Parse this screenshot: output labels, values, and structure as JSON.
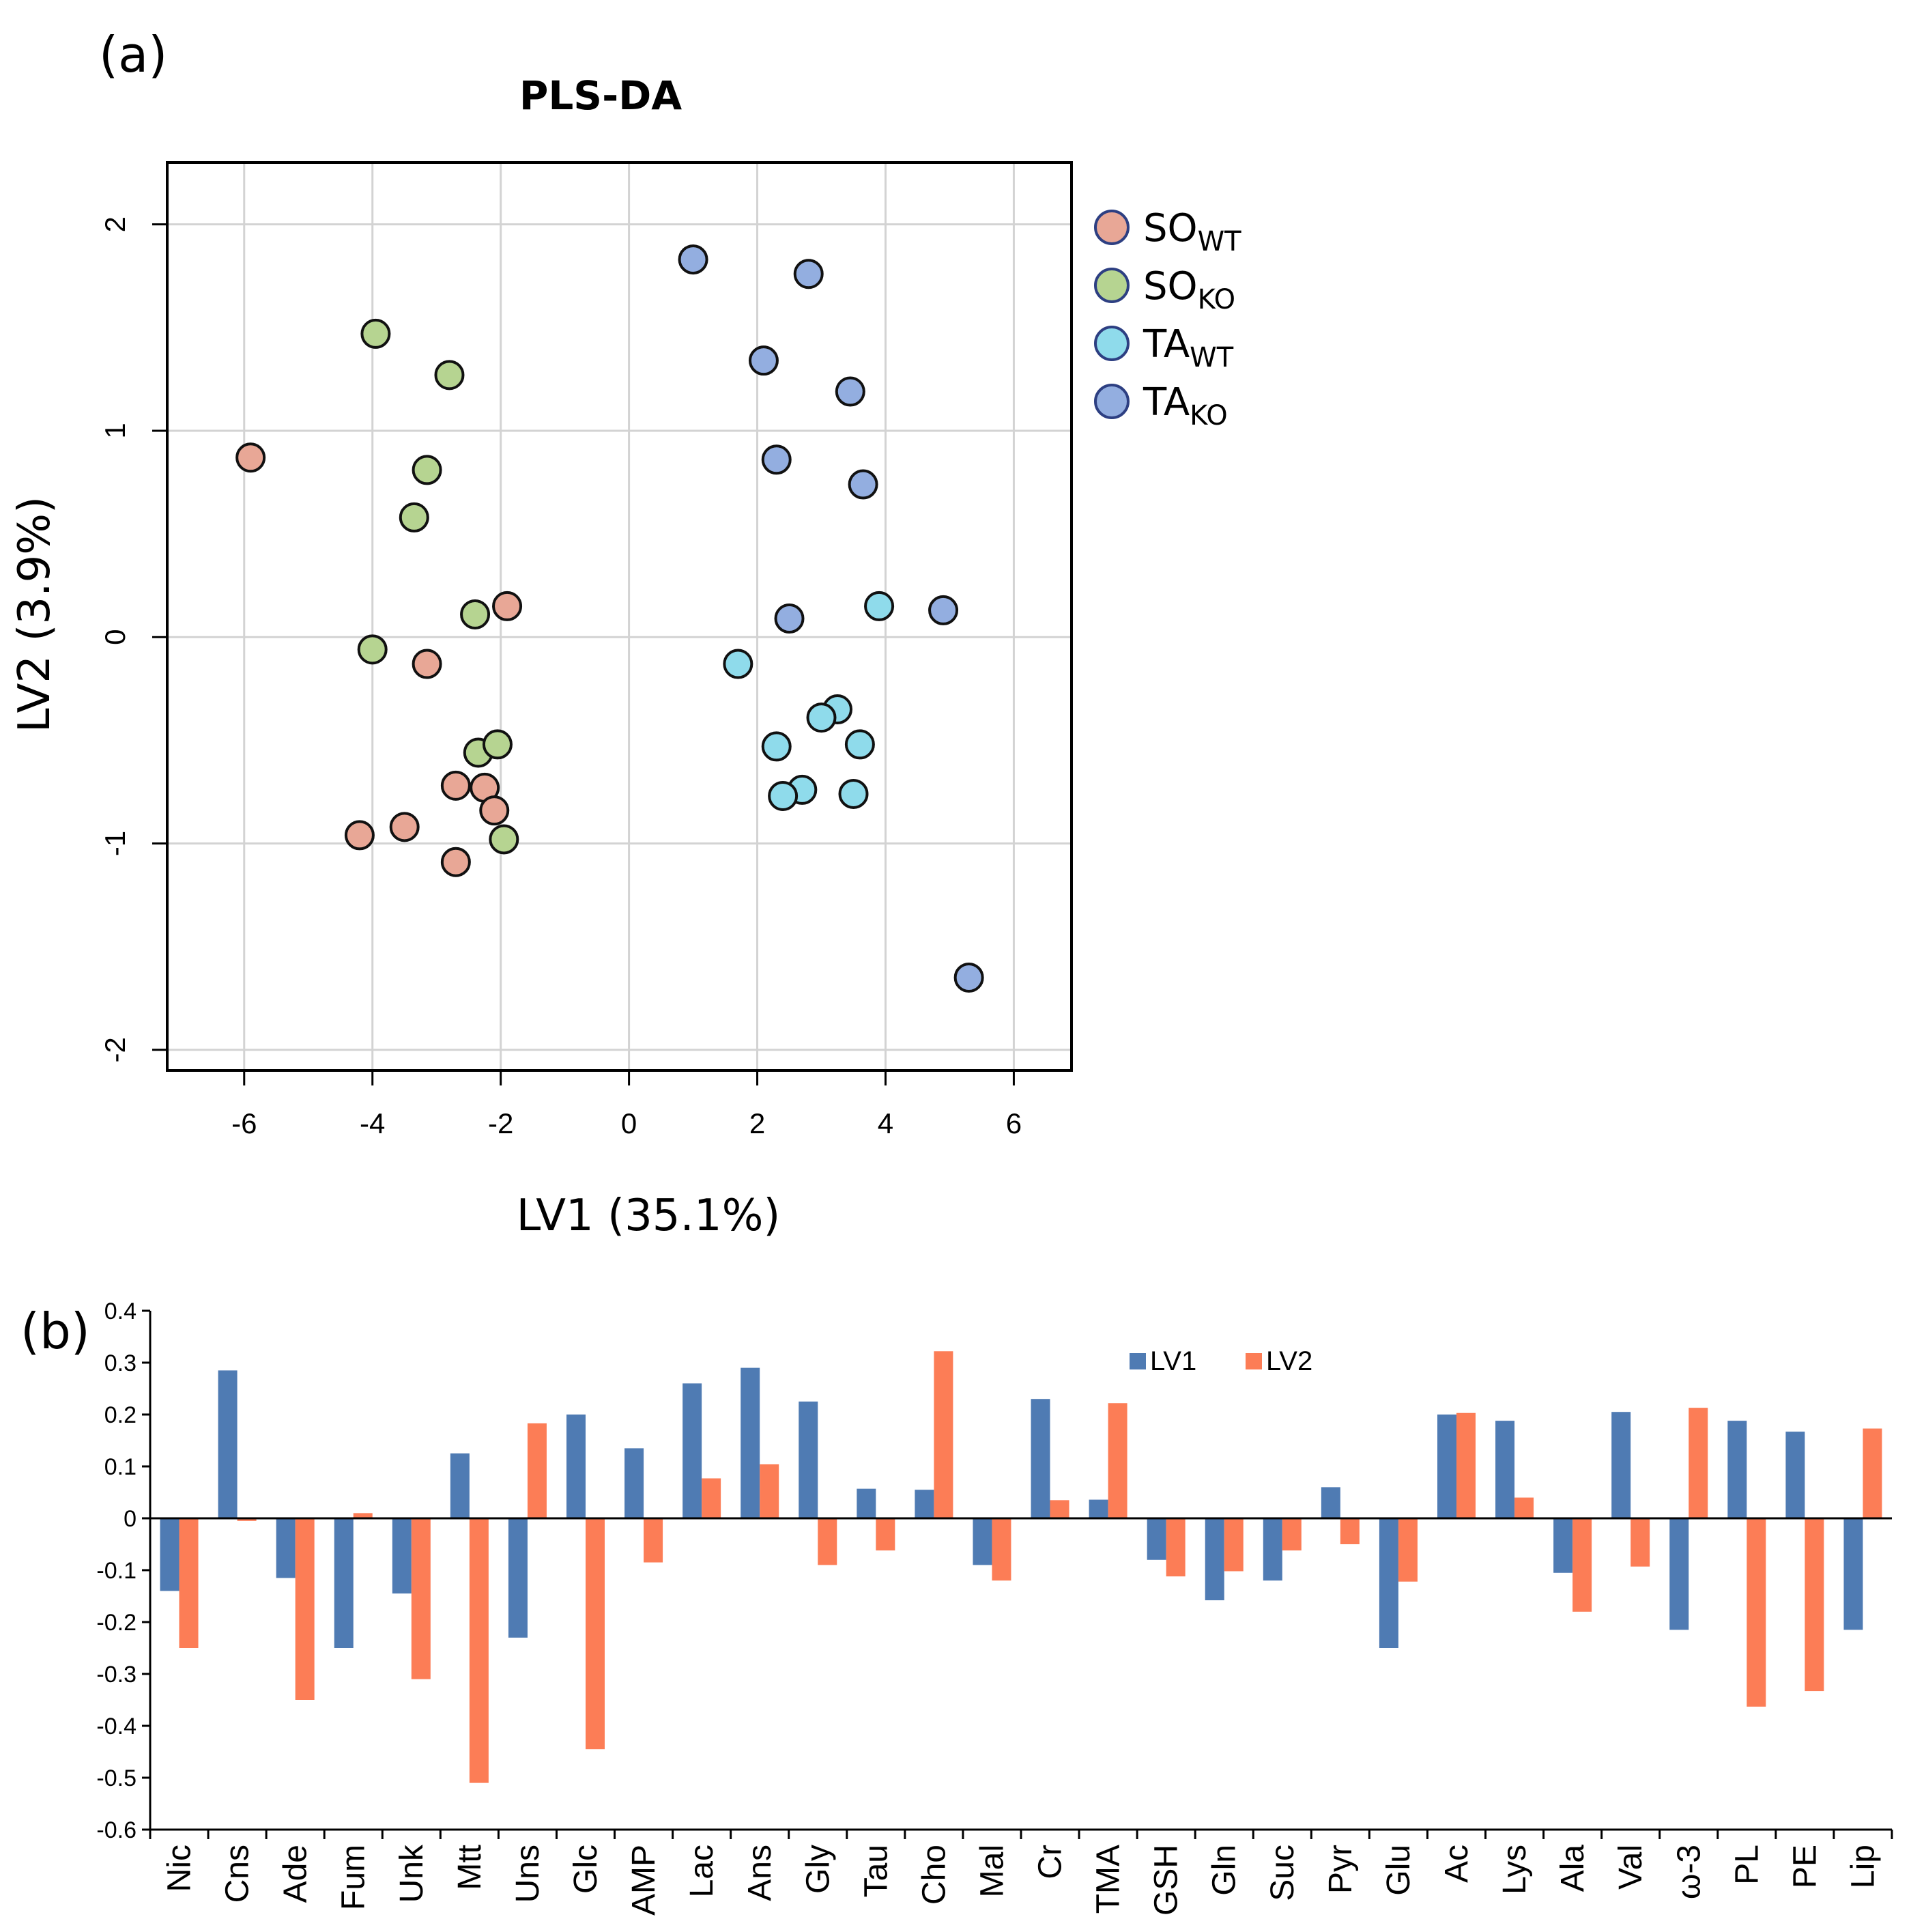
{
  "chart_data": [
    {
      "type": "scatter",
      "panel_label": "(a)",
      "title": "PLS-DA",
      "xlabel": "LV1 (35.1%)",
      "ylabel": "LV2 (3.9%)",
      "xlim": [
        -7.2,
        6.9
      ],
      "ylim": [
        -2.1,
        2.3
      ],
      "xticks": [
        -6,
        -4,
        -2,
        0,
        2,
        4,
        6
      ],
      "yticks": [
        -2,
        -1,
        0,
        1,
        2
      ],
      "grid": true,
      "legend_position": "right-top",
      "series": [
        {
          "name": "SO",
          "sub": "WT",
          "color": "#e8a796",
          "points": [
            [
              -5.9,
              0.87
            ],
            [
              -1.9,
              0.15
            ],
            [
              -3.15,
              -0.13
            ],
            [
              -2.7,
              -0.72
            ],
            [
              -2.25,
              -0.73
            ],
            [
              -2.1,
              -0.84
            ],
            [
              -4.2,
              -0.96
            ],
            [
              -3.5,
              -0.92
            ],
            [
              -2.7,
              -1.09
            ]
          ]
        },
        {
          "name": "SO",
          "sub": "KO",
          "color": "#b6d491",
          "points": [
            [
              -3.95,
              1.47
            ],
            [
              -2.8,
              1.27
            ],
            [
              -3.15,
              0.81
            ],
            [
              -3.35,
              0.58
            ],
            [
              -2.4,
              0.11
            ],
            [
              -4.0,
              -0.06
            ],
            [
              -2.35,
              -0.56
            ],
            [
              -2.05,
              -0.52
            ],
            [
              -1.95,
              -0.98
            ]
          ]
        },
        {
          "name": "TA",
          "sub": "WT",
          "color": "#8fdbeb",
          "points": [
            [
              3.9,
              0.15
            ],
            [
              1.7,
              -0.13
            ],
            [
              3.25,
              -0.35
            ],
            [
              3.0,
              -0.39
            ],
            [
              2.3,
              -0.53
            ],
            [
              3.6,
              -0.52
            ],
            [
              2.7,
              -0.74
            ],
            [
              2.4,
              -0.77
            ],
            [
              3.5,
              -0.76
            ]
          ]
        },
        {
          "name": "TA",
          "sub": "KO",
          "color": "#93aee0",
          "points": [
            [
              1.0,
              1.83
            ],
            [
              2.8,
              1.76
            ],
            [
              2.1,
              1.34
            ],
            [
              3.45,
              1.19
            ],
            [
              2.3,
              0.86
            ],
            [
              3.65,
              0.74
            ],
            [
              2.5,
              0.09
            ],
            [
              4.9,
              0.13
            ],
            [
              5.3,
              -1.65
            ]
          ]
        }
      ]
    },
    {
      "type": "bar",
      "panel_label": "(b)",
      "ylim": [
        -0.6,
        0.4
      ],
      "yticks": [
        "0.4",
        "0.3",
        "0.2",
        "0.1",
        "0",
        "-0.1",
        "-0.2",
        "-0.3",
        "-0.4",
        "-0.5",
        "-0.6"
      ],
      "legend_position": "top-center",
      "categories": [
        "Nic",
        "Cns",
        "Ade",
        "Fum",
        "Unk",
        "Mtt",
        "Uns",
        "Glc",
        "AMP",
        "Lac",
        "Ans",
        "Gly",
        "Tau",
        "Cho",
        "Mal",
        "Cr",
        "TMA",
        "GSH",
        "Gln",
        "Suc",
        "Pyr",
        "Glu",
        "Ac",
        "Lys",
        "Ala",
        "Val",
        "ω-3",
        "PL",
        "PE",
        "Lip"
      ],
      "series": [
        {
          "name": "LV1",
          "color": "#4f7bb3",
          "values": [
            -0.14,
            0.285,
            -0.115,
            -0.25,
            -0.145,
            0.125,
            -0.23,
            0.2,
            0.135,
            0.26,
            0.29,
            0.225,
            0.057,
            0.055,
            -0.09,
            0.23,
            0.036,
            -0.08,
            -0.158,
            -0.12,
            0.06,
            -0.25,
            0.2,
            0.188,
            -0.105,
            0.205,
            -0.215,
            0.188,
            0.167,
            -0.215
          ]
        },
        {
          "name": "LV2",
          "color": "#fc7d56",
          "values": [
            -0.25,
            -0.005,
            -0.35,
            0.01,
            -0.31,
            -0.51,
            0.183,
            -0.445,
            -0.085,
            0.077,
            0.104,
            -0.09,
            -0.062,
            0.322,
            -0.12,
            0.035,
            0.222,
            -0.112,
            -0.102,
            -0.062,
            -0.05,
            -0.122,
            0.203,
            0.04,
            -0.18,
            -0.093,
            0.213,
            -0.363,
            -0.333,
            0.173
          ]
        }
      ]
    }
  ]
}
